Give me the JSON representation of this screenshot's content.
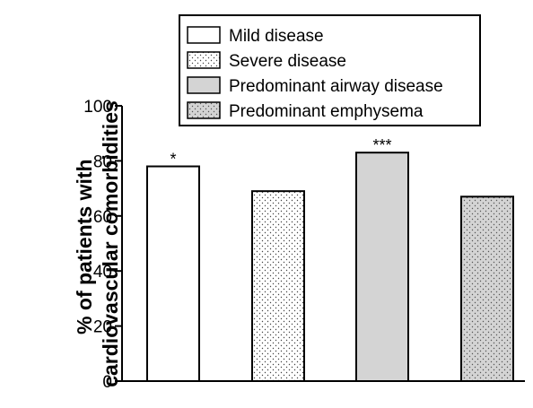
{
  "chart_data": {
    "type": "bar",
    "categories": [
      "Mild disease",
      "Severe disease",
      "Predominant airway disease",
      "Predominant emphysema"
    ],
    "values": [
      78,
      69,
      83,
      67
    ],
    "annotations": [
      "*",
      "",
      "***",
      ""
    ],
    "ylabel_lines": [
      "% of patients with",
      "cardiovascular comorbidities"
    ],
    "xlabel": "",
    "ylim": [
      0,
      100
    ],
    "yticks": [
      0,
      20,
      40,
      60,
      80,
      100
    ],
    "legend": {
      "placement": "top-center",
      "entries": [
        {
          "label": "Mild disease",
          "fill": "white"
        },
        {
          "label": "Severe disease",
          "fill": "dots"
        },
        {
          "label": "Predominant airway disease",
          "fill": "gray"
        },
        {
          "label": "Predominant emphysema",
          "fill": "gray-dots"
        }
      ]
    },
    "colors": {
      "gray": "#d4d4d4",
      "white": "#ffffff",
      "ink": "#000000"
    }
  }
}
